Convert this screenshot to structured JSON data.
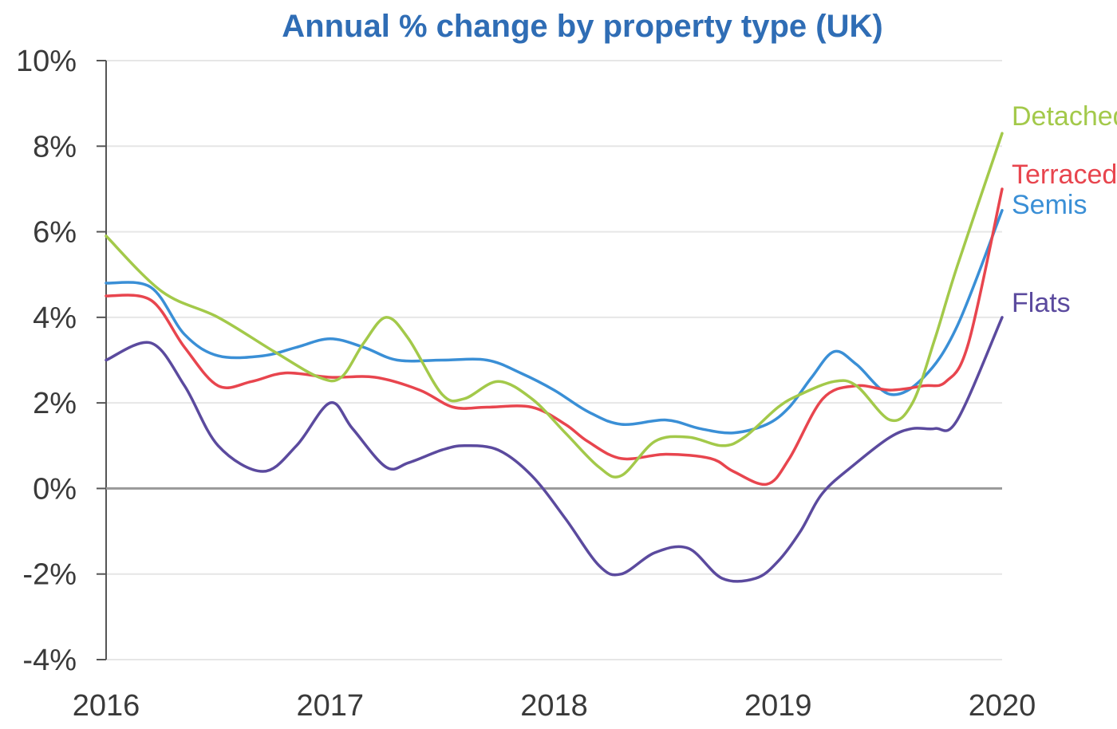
{
  "chart_data": {
    "type": "line",
    "title": "Annual % change by property type (UK)",
    "xlabel": "",
    "ylabel": "",
    "xlim": [
      2016,
      2020
    ],
    "ylim": [
      -4,
      10
    ],
    "x_ticks": [
      "2016",
      "2017",
      "2018",
      "2019",
      "2020"
    ],
    "y_ticks": [
      "10%",
      "8%",
      "6%",
      "4%",
      "2%",
      "0%",
      "-2%",
      "-4%"
    ],
    "grid": true,
    "legend": "labels at right end of lines",
    "series": [
      {
        "name": "Detached",
        "color": "#a3c94a",
        "x": [
          2016.0,
          2016.25,
          2016.5,
          2016.75,
          2016.95,
          2017.05,
          2017.15,
          2017.25,
          2017.35,
          2017.5,
          2017.6,
          2017.75,
          2017.9,
          2018.05,
          2018.2,
          2018.3,
          2018.45,
          2018.6,
          2018.75,
          2018.85,
          2019.0,
          2019.1,
          2019.25,
          2019.35,
          2019.5,
          2019.6,
          2019.7,
          2019.8,
          2020.0
        ],
        "y": [
          5.9,
          4.6,
          4.0,
          3.2,
          2.6,
          2.6,
          3.4,
          4.0,
          3.5,
          2.2,
          2.1,
          2.5,
          2.1,
          1.3,
          0.5,
          0.3,
          1.1,
          1.2,
          1.0,
          1.2,
          1.9,
          2.2,
          2.5,
          2.4,
          1.6,
          2.0,
          3.5,
          5.2,
          8.3
        ]
      },
      {
        "name": "Terraced",
        "color": "#e8454e",
        "x": [
          2016.0,
          2016.2,
          2016.35,
          2016.5,
          2016.65,
          2016.8,
          2017.0,
          2017.2,
          2017.4,
          2017.55,
          2017.7,
          2017.9,
          2018.05,
          2018.15,
          2018.3,
          2018.5,
          2018.7,
          2018.8,
          2018.95,
          2019.05,
          2019.2,
          2019.35,
          2019.5,
          2019.65,
          2019.75,
          2019.85,
          2020.0
        ],
        "y": [
          4.5,
          4.4,
          3.3,
          2.4,
          2.5,
          2.7,
          2.6,
          2.6,
          2.3,
          1.9,
          1.9,
          1.9,
          1.5,
          1.1,
          0.7,
          0.8,
          0.7,
          0.4,
          0.1,
          0.7,
          2.1,
          2.4,
          2.3,
          2.4,
          2.5,
          3.4,
          7.0
        ]
      },
      {
        "name": "Semis",
        "color": "#3a8fd6",
        "x": [
          2016.0,
          2016.2,
          2016.35,
          2016.5,
          2016.7,
          2016.85,
          2017.0,
          2017.15,
          2017.3,
          2017.5,
          2017.7,
          2017.85,
          2018.0,
          2018.15,
          2018.3,
          2018.5,
          2018.65,
          2018.8,
          2018.95,
          2019.05,
          2019.15,
          2019.25,
          2019.35,
          2019.5,
          2019.65,
          2019.8,
          2020.0
        ],
        "y": [
          4.8,
          4.7,
          3.6,
          3.1,
          3.1,
          3.3,
          3.5,
          3.3,
          3.0,
          3.0,
          3.0,
          2.7,
          2.3,
          1.8,
          1.5,
          1.6,
          1.4,
          1.3,
          1.5,
          1.9,
          2.6,
          3.2,
          2.9,
          2.2,
          2.6,
          3.8,
          6.5
        ]
      },
      {
        "name": "Flats",
        "color": "#5b4a9e",
        "x": [
          2016.0,
          2016.2,
          2016.35,
          2016.5,
          2016.7,
          2016.85,
          2017.0,
          2017.1,
          2017.25,
          2017.35,
          2017.5,
          2017.6,
          2017.75,
          2017.9,
          2018.05,
          2018.2,
          2018.3,
          2018.45,
          2018.6,
          2018.75,
          2018.9,
          2019.0,
          2019.1,
          2019.2,
          2019.35,
          2019.5,
          2019.6,
          2019.7,
          2019.8,
          2020.0
        ],
        "y": [
          3.0,
          3.4,
          2.4,
          1.0,
          0.4,
          1.0,
          2.0,
          1.4,
          0.5,
          0.6,
          0.9,
          1.0,
          0.9,
          0.3,
          -0.7,
          -1.8,
          -2.0,
          -1.5,
          -1.4,
          -2.1,
          -2.1,
          -1.7,
          -1.0,
          -0.1,
          0.6,
          1.2,
          1.4,
          1.4,
          1.6,
          4.0
        ]
      }
    ]
  }
}
